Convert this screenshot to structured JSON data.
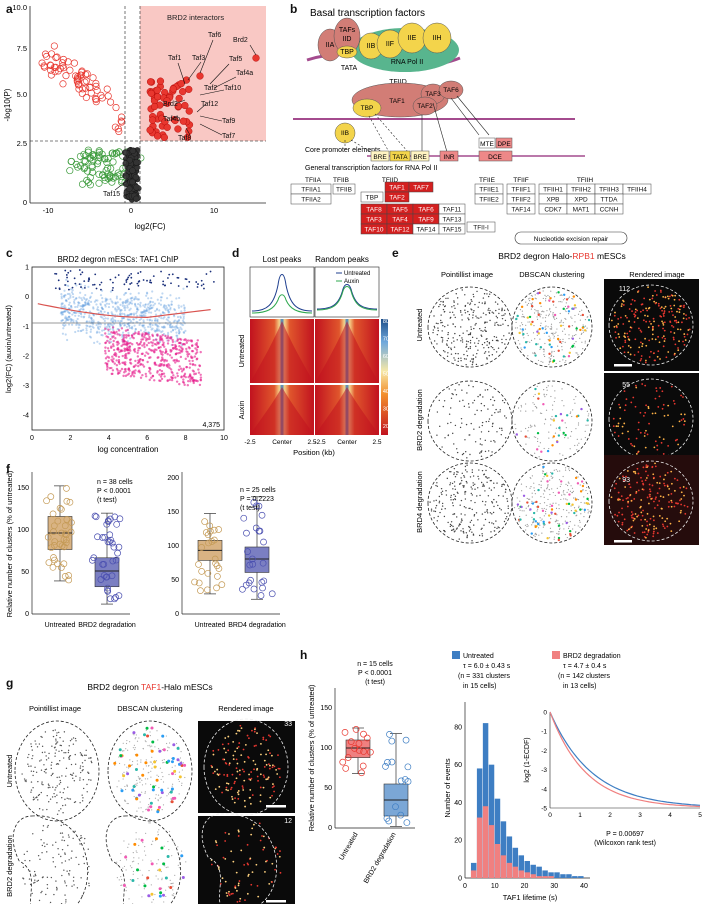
{
  "panels": {
    "a": "a",
    "b": "b",
    "c": "c",
    "d": "d",
    "e": "e",
    "f": "f",
    "g": "g",
    "h": "h"
  },
  "panel_a": {
    "ylabel": "-log10(P)",
    "xlabel": "log2(FC)",
    "yticks": [
      "0",
      "2.5",
      "5.0",
      "7.5",
      "10.0"
    ],
    "xticks": [
      "-10",
      "0",
      "10"
    ],
    "region_label": "BRD2 interactors",
    "point_labels": [
      "Brd2",
      "Taf6",
      "Taf3",
      "Taf5",
      "Taf1",
      "Taf4a",
      "Taf10",
      "Brd2",
      "Taf2",
      "Taf12",
      "Taf4b",
      "Taf9",
      "Taf8",
      "Taf7",
      "Taf15"
    ]
  },
  "panel_b": {
    "title": "Basal transcription factors",
    "complex": {
      "TAFs": "TAFs",
      "IID": "IID",
      "IIA": "IIA",
      "TBP": "TBP",
      "IIB": "IIB",
      "IIF": "IIF",
      "IIE": "IIE",
      "IIH": "IIH",
      "polii": "RNA Pol II",
      "tata": "TATA",
      "tfiid": "TFIID"
    },
    "tfiid": {
      "taf1": "TAF1",
      "taf2": "TAF2",
      "taf3": "TAF3",
      "taf6": "TAF6",
      "tbp": "TBP",
      "iib": "IIB"
    },
    "core": {
      "label": "Core promoter elements",
      "bre1": "BRE",
      "tata": "TATA",
      "bre2": "BRE",
      "inr": "INR",
      "mte": "MTE",
      "dpe": "DPE",
      "dce": "DCE"
    },
    "gtf_title": "General transcription factors for RNA Pol II",
    "headers": [
      "TFIIA",
      "TFIIB",
      "TFIID",
      "TFIIE",
      "TFIIF",
      "TFIIH"
    ],
    "tfiia": [
      "TFIIA1",
      "TFIIA2"
    ],
    "tfiib": [
      "TFIIB"
    ],
    "tbp": "TBP",
    "tfiid_top": [
      "TAF1",
      "TAF7",
      "TAF2"
    ],
    "tfiid_grid": [
      "TAF8",
      "TAF5",
      "TAF6",
      "TAF11",
      "TAF3",
      "TAF4",
      "TAF9",
      "TAF13",
      "TAF10",
      "TAF12",
      "TAF14",
      "TAF15"
    ],
    "tfiie": [
      "TFIIE1",
      "TFIIE2"
    ],
    "tfiif": [
      "TFIIF1",
      "TFIIF2",
      "TAF14"
    ],
    "tfiih": [
      "TFIIH1",
      "TFIIH2",
      "TFIIH3",
      "TFIIH4",
      "XPB",
      "XPD",
      "TTDA",
      "CDK7",
      "MAT1",
      "CCNH"
    ],
    "tfii_i": "TFII-I",
    "ner": "Nucleotide excision repair"
  },
  "panel_c": {
    "title": "BRD2 degron mESCs: TAF1 ChIP",
    "ylabel": "log2(FC) (auxin/untreated)",
    "xlabel": "log concentration",
    "xticks": [
      "0",
      "2",
      "4",
      "6",
      "8",
      "10"
    ],
    "yticks": [
      "1",
      "0",
      "-1",
      "-2",
      "-3",
      "-4"
    ],
    "count": "4,375"
  },
  "panel_d": {
    "col1": "Lost peaks",
    "col2": "Random peaks",
    "legend": [
      "Untreated",
      "Auxin"
    ],
    "rows": [
      "Untreated",
      "Auxin"
    ],
    "xticks": [
      "-2.5",
      "Center",
      "2.5",
      "-2.5",
      "Center",
      "2.5"
    ],
    "xlabel": "Position (kb)",
    "cbar": [
      "80",
      "70",
      "60",
      "50",
      "40",
      "30",
      "20"
    ]
  },
  "panel_e": {
    "title_pre": "BRD2 degron Halo-",
    "title_red": "RPB1",
    "title_post": " mESCs",
    "cols": [
      "Pointillist image",
      "DBSCAN clustering",
      "Rendered image"
    ],
    "rows": [
      "Untreated",
      "BRD2 degradation",
      "BRD4 degradation"
    ],
    "counts": [
      "112",
      "55",
      "93"
    ]
  },
  "panel_f": {
    "ylabel": "Relative number of clusters (% of untreated)",
    "left": {
      "yticks": [
        "0",
        "50",
        "100",
        "150"
      ],
      "n": "n = 38 cells",
      "p": "P < 0.0001",
      "test": "(t test)",
      "cats": [
        "Untreated",
        "BRD2 degradation"
      ]
    },
    "right": {
      "yticks": [
        "0",
        "50",
        "100",
        "150",
        "200"
      ],
      "n": "n = 25 cells",
      "p": "P = 0.2223",
      "test": "(t test)",
      "cats": [
        "Untreated",
        "BRD4 degradation"
      ]
    }
  },
  "panel_g": {
    "title_pre": "BRD2 degron ",
    "title_red": "TAF1",
    "title_post": "-Halo mESCs",
    "cols": [
      "Pointillist image",
      "DBSCAN clustering",
      "Rendered image"
    ],
    "rows": [
      "Untreated",
      "BRD2 degradation"
    ],
    "counts": [
      "33",
      "12"
    ]
  },
  "panel_h": {
    "box": {
      "ylabel": "Relative number of clusters (% of untreated)",
      "yticks": [
        "0",
        "50",
        "100",
        "150"
      ],
      "n": "n = 15 cells",
      "p": "P < 0.0001",
      "test": "(t test)",
      "cats": [
        "Untreated",
        "BRD2 degradation"
      ]
    },
    "legend": {
      "untreated": "Untreated",
      "u_tau": "τ = 6.0 ± 0.43 s",
      "u_n": "(n = 331 clusters",
      "u_n2": "in 15 cells)",
      "brd2": "BRD2 degradation",
      "b_tau": "τ = 4.7 ± 0.4 s",
      "b_n": "(n = 142 clusters",
      "b_n2": "in 13 cells)"
    },
    "hist": {
      "ylabel": "Number of events",
      "xlabel": "TAF1 lifetime (s)",
      "xticks": [
        "0",
        "10",
        "20",
        "30",
        "40"
      ],
      "yticks": [
        "0",
        "20",
        "40",
        "60",
        "80"
      ]
    },
    "inset": {
      "ylabel": "log2 (1-ECDF)",
      "xticks": [
        "0",
        "1",
        "2",
        "3",
        "4",
        "5"
      ],
      "yticks": [
        "0",
        "-1",
        "-2",
        "-3",
        "-4",
        "-5"
      ],
      "p": "P = 0.00697",
      "test": "(Wilcoxon rank test)"
    }
  },
  "colors": {
    "red": "#e8372f",
    "blue": "#3e7ec3",
    "pink": "#f08080",
    "green": "#3a9a3a",
    "magenta": "#e6198a",
    "box_tan": "#d9b383",
    "box_blue": "#7b7fc2"
  }
}
